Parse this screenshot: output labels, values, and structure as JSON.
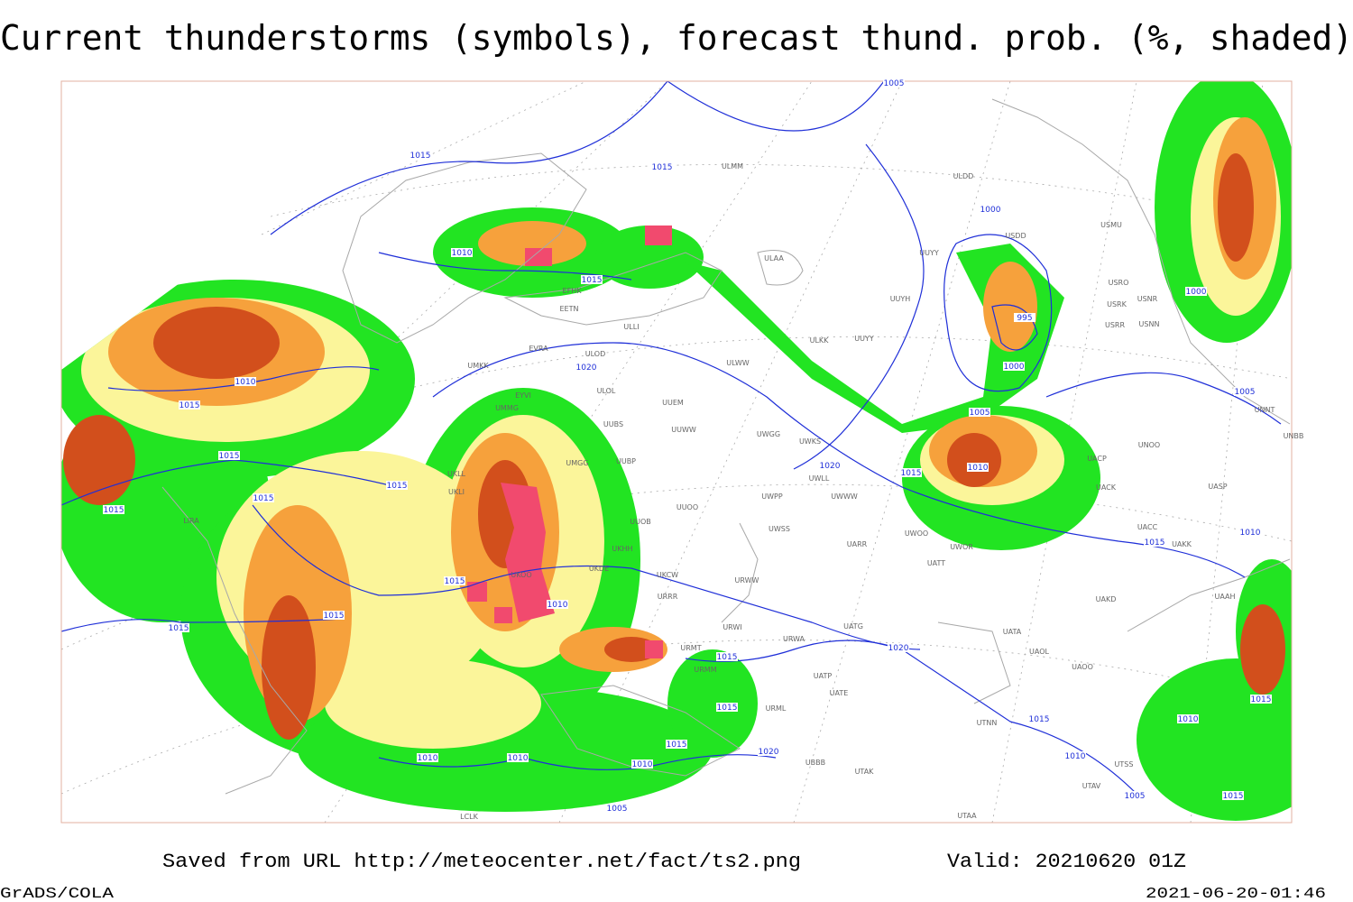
{
  "title": "Current thunderstorms (symbols), forecast thund. prob. (%, shaded)",
  "footer": {
    "source": "Saved from URL http://meteocenter.net/fact/ts2.png",
    "valid": "Valid: 20210620 01Z",
    "software": "GrADS/COLA",
    "timestamp": "2021-06-20-01:46"
  },
  "map": {
    "isobar_labels": [
      "1005",
      "1015",
      "1015",
      "1010",
      "1015",
      "1000",
      "995",
      "1000",
      "1005",
      "1010",
      "1015",
      "1020",
      "1020",
      "1010",
      "1015",
      "1015",
      "1015",
      "1015",
      "1015",
      "1015",
      "1010",
      "1015",
      "1015",
      "1020",
      "1015",
      "1015",
      "1015",
      "1010",
      "1005",
      "1005",
      "1010",
      "1010",
      "1010",
      "1015",
      "1020",
      "1005",
      "1000",
      "1010",
      "1015",
      "1010",
      "1015",
      "1015"
    ],
    "station_labels": [
      "ULMM",
      "ULDD",
      "USMU",
      "USDD",
      "ULAA",
      "UUYY",
      "USRO",
      "USRK",
      "USNR",
      "UUYH",
      "USRR",
      "USNN",
      "EFHK",
      "EETN",
      "ULLI",
      "ULKK",
      "UUYY",
      "EVRA",
      "ULOD",
      "UMKK",
      "ULWW",
      "ULOL",
      "EYVI",
      "UUEM",
      "UMMG",
      "UUBS",
      "UUWW",
      "UWGG",
      "UWKS",
      "UMGG",
      "UUBP",
      "UKLL",
      "UWLL",
      "UWWW",
      "UKLI",
      "UWPP",
      "UUOO",
      "UUOB",
      "UWSS",
      "UARR",
      "UWOO",
      "UWOR",
      "UATT",
      "UKHH",
      "UKDE",
      "UKCW",
      "URWW",
      "UKOO",
      "URRR",
      "UAKD",
      "UATG",
      "URWI",
      "URWA",
      "UATA",
      "UAOL",
      "UAOO",
      "URMT",
      "URMM",
      "UATP",
      "UATE",
      "URML",
      "UTNN",
      "UBBB",
      "UTAK",
      "UTAV",
      "UTSS",
      "UTAA",
      "LIRA",
      "LCLK",
      "UACC",
      "UAKK",
      "UAAH",
      "UACK",
      "UASP",
      "UNOO",
      "UNNT",
      "UNBB",
      "UACP"
    ]
  }
}
